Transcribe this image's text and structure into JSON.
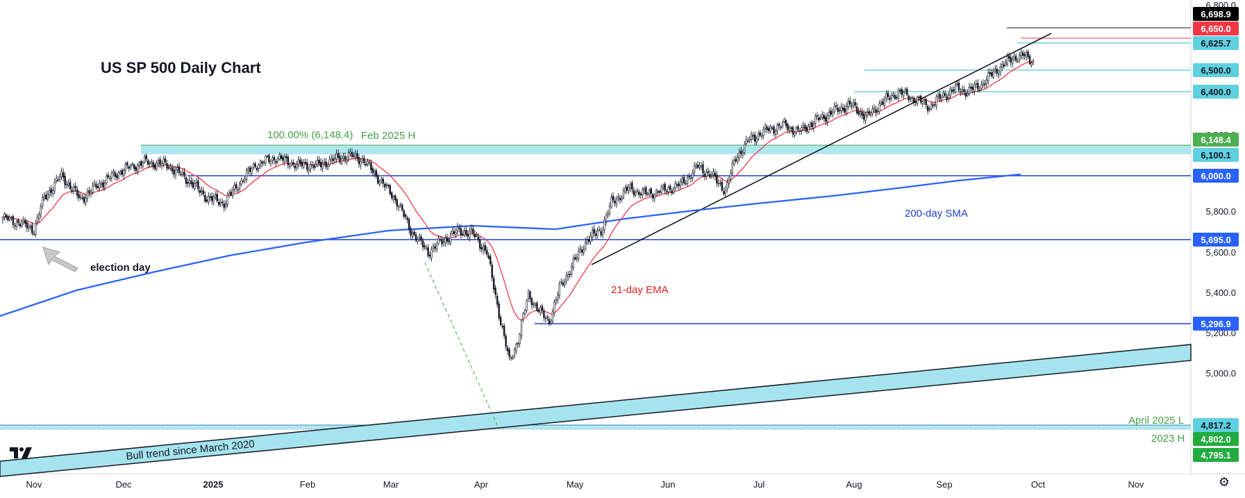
{
  "chart_data": {
    "type": "candlestick",
    "title": "US SP 500 Daily Chart",
    "x_ticks": [
      "Nov",
      "Dec",
      "2025",
      "Feb",
      "Mar",
      "Apr",
      "May",
      "Jun",
      "Jul",
      "Aug",
      "Sep",
      "Oct",
      "Nov"
    ],
    "y_ticks": [
      "6,800.0",
      "6,200.0",
      "5,800.0",
      "5,600.0",
      "5,400.0",
      "5,200.0",
      "5,000.0"
    ],
    "ylim": [
      4710,
      6845
    ],
    "price_levels": [
      {
        "value": 6698.9,
        "label": "6,698.9",
        "bg": "#000000",
        "fg": "#ffffff"
      },
      {
        "value": 6650.0,
        "label": "6,650.0",
        "bg": "#f23645",
        "fg": "#ffffff"
      },
      {
        "value": 6625.7,
        "label": "6,625.7",
        "bg": "#5fd0e0",
        "fg": "#131722"
      },
      {
        "value": 6500.0,
        "label": "6,500.0",
        "bg": "#5fd0e0",
        "fg": "#131722"
      },
      {
        "value": 6400.0,
        "label": "6,400.0",
        "bg": "#5fd0e0",
        "fg": "#131722"
      },
      {
        "value": 6148.4,
        "label": "6,148.4",
        "bg": "#4caf50",
        "fg": "#ffffff"
      },
      {
        "value": 6100.1,
        "label": "6,100.1",
        "bg": "#5fd0e0",
        "fg": "#131722"
      },
      {
        "value": 6000.0,
        "label": "6,000.0",
        "bg": "#2962ff",
        "fg": "#ffffff"
      },
      {
        "value": 5695.0,
        "label": "5,695.0",
        "bg": "#2962ff",
        "fg": "#ffffff"
      },
      {
        "value": 5296.9,
        "label": "5,296.9",
        "bg": "#2962ff",
        "fg": "#ffffff"
      },
      {
        "value": 4817.2,
        "label": "4,817.2",
        "bg": "#5fd0e0",
        "fg": "#131722"
      },
      {
        "value": 4802.0,
        "label": "4,802.0",
        "bg": "#22ab3f",
        "fg": "#ffffff"
      },
      {
        "value": 4795.1,
        "label": "4,795.1",
        "bg": "#22ab3f",
        "fg": "#ffffff"
      }
    ],
    "annotations": {
      "fib": "100.00% (6,148.4)",
      "feb_high": "Feb 2025 H",
      "election": "election day",
      "ema": "21-day EMA",
      "sma": "200-day SMA",
      "bull": "Bull trend since March 2020",
      "april_low": "April 2025 L",
      "h2023": "2023 H"
    },
    "series": [
      {
        "name": "21-day EMA",
        "color": "#f23645"
      },
      {
        "name": "200-day SMA",
        "color": "#2962ff"
      }
    ],
    "price_path_anchors": [
      [
        0,
        5770
      ],
      [
        10,
        5740
      ],
      [
        18,
        5705
      ],
      [
        24,
        5880
      ],
      [
        34,
        6000
      ],
      [
        45,
        5870
      ],
      [
        56,
        5955
      ],
      [
        70,
        6035
      ],
      [
        82,
        6075
      ],
      [
        95,
        6060
      ],
      [
        108,
        5970
      ],
      [
        118,
        5880
      ],
      [
        128,
        5850
      ],
      [
        136,
        5950
      ],
      [
        146,
        6060
      ],
      [
        158,
        6100
      ],
      [
        170,
        6060
      ],
      [
        182,
        6055
      ],
      [
        192,
        6090
      ],
      [
        200,
        6110
      ],
      [
        208,
        6090
      ],
      [
        218,
        5980
      ],
      [
        228,
        5860
      ],
      [
        236,
        5700
      ],
      [
        246,
        5580
      ],
      [
        254,
        5640
      ],
      [
        264,
        5700
      ],
      [
        272,
        5680
      ],
      [
        280,
        5580
      ],
      [
        288,
        5200
      ],
      [
        293,
        4980
      ],
      [
        298,
        5100
      ],
      [
        304,
        5350
      ],
      [
        310,
        5260
      ],
      [
        316,
        5200
      ],
      [
        322,
        5380
      ],
      [
        330,
        5520
      ],
      [
        338,
        5650
      ],
      [
        346,
        5700
      ],
      [
        352,
        5850
      ],
      [
        362,
        5930
      ],
      [
        372,
        5900
      ],
      [
        382,
        5920
      ],
      [
        392,
        5950
      ],
      [
        402,
        6050
      ],
      [
        410,
        6000
      ],
      [
        418,
        5920
      ],
      [
        424,
        6100
      ],
      [
        432,
        6200
      ],
      [
        442,
        6250
      ],
      [
        452,
        6280
      ],
      [
        460,
        6240
      ],
      [
        470,
        6300
      ],
      [
        480,
        6350
      ],
      [
        490,
        6390
      ],
      [
        500,
        6320
      ],
      [
        508,
        6400
      ],
      [
        518,
        6460
      ],
      [
        528,
        6420
      ],
      [
        536,
        6380
      ],
      [
        544,
        6440
      ],
      [
        552,
        6480
      ],
      [
        558,
        6460
      ],
      [
        566,
        6500
      ],
      [
        576,
        6590
      ],
      [
        585,
        6650
      ],
      [
        590,
        6660
      ],
      [
        596,
        6626
      ]
    ]
  }
}
